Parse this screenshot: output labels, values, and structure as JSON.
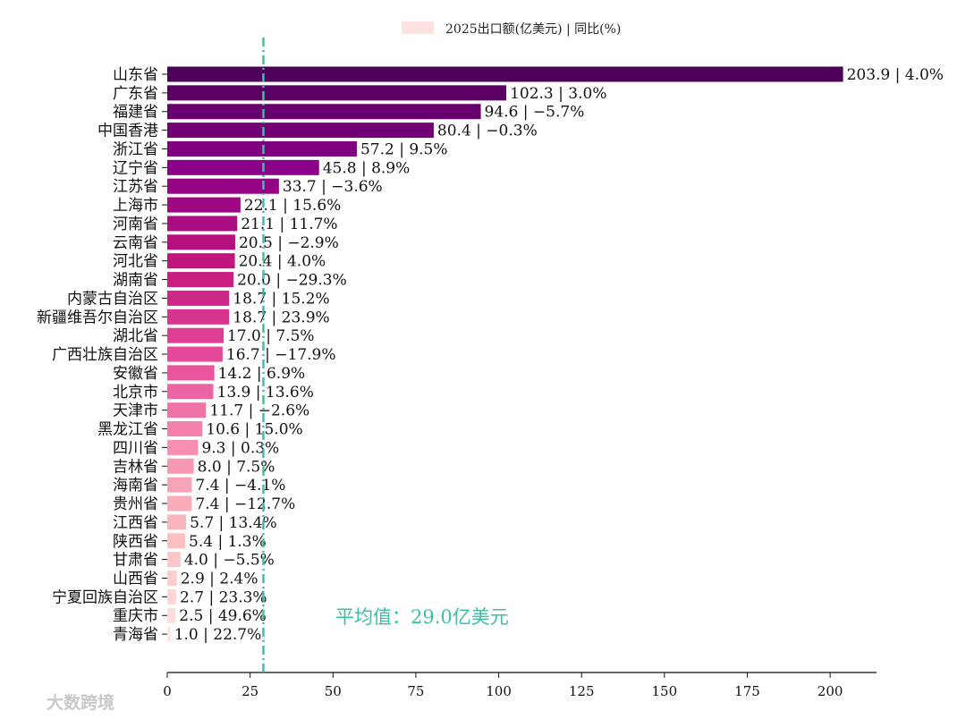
{
  "chart_data": {
    "type": "bar",
    "orientation": "horizontal",
    "legend": {
      "label": "2025出口额(亿美元) | 同比(%)",
      "position": "top-center"
    },
    "categories": [
      "山东省",
      "广东省",
      "福建省",
      "中国香港",
      "浙江省",
      "辽宁省",
      "江苏省",
      "上海市",
      "河南省",
      "云南省",
      "河北省",
      "湖南省",
      "内蒙古自治区",
      "新疆维吾尔自治区",
      "湖北省",
      "广西壮族自治区",
      "安徽省",
      "北京市",
      "天津市",
      "黑龙江省",
      "四川省",
      "吉林省",
      "海南省",
      "贵州省",
      "江西省",
      "陕西省",
      "甘肃省",
      "山西省",
      "宁夏回族自治区",
      "重庆市",
      "青海省"
    ],
    "values": [
      203.9,
      102.3,
      94.6,
      80.4,
      57.2,
      45.8,
      33.7,
      22.1,
      21.1,
      20.5,
      20.4,
      20.0,
      18.7,
      18.7,
      17.0,
      16.7,
      14.2,
      13.9,
      11.7,
      10.6,
      9.3,
      8.0,
      7.4,
      7.4,
      5.7,
      5.4,
      4.0,
      2.9,
      2.7,
      2.5,
      1.0
    ],
    "yoy": [
      "4.0%",
      "3.0%",
      "−5.7%",
      "−0.3%",
      "9.5%",
      "8.9%",
      "−3.6%",
      "15.6%",
      "11.7%",
      "−2.9%",
      "4.0%",
      "−29.3%",
      "15.2%",
      "23.9%",
      "7.5%",
      "−17.9%",
      "6.9%",
      "13.6%",
      "−2.6%",
      "15.0%",
      "0.3%",
      "7.5%",
      "−4.1%",
      "−12.7%",
      "13.4%",
      "1.3%",
      "−5.5%",
      "2.4%",
      "23.3%",
      "49.6%",
      "22.7%"
    ],
    "xlim": [
      0,
      214
    ],
    "xticks": [
      0,
      25,
      50,
      75,
      100,
      125,
      150,
      175,
      200
    ],
    "mean": {
      "value": 29.0,
      "label": "平均值：29.0亿美元",
      "color": "#3cbfa4"
    },
    "color_gradient": [
      "#4d0059",
      "#ffe1e1"
    ],
    "grid": false
  },
  "watermark": {
    "text": "大数跨境"
  }
}
